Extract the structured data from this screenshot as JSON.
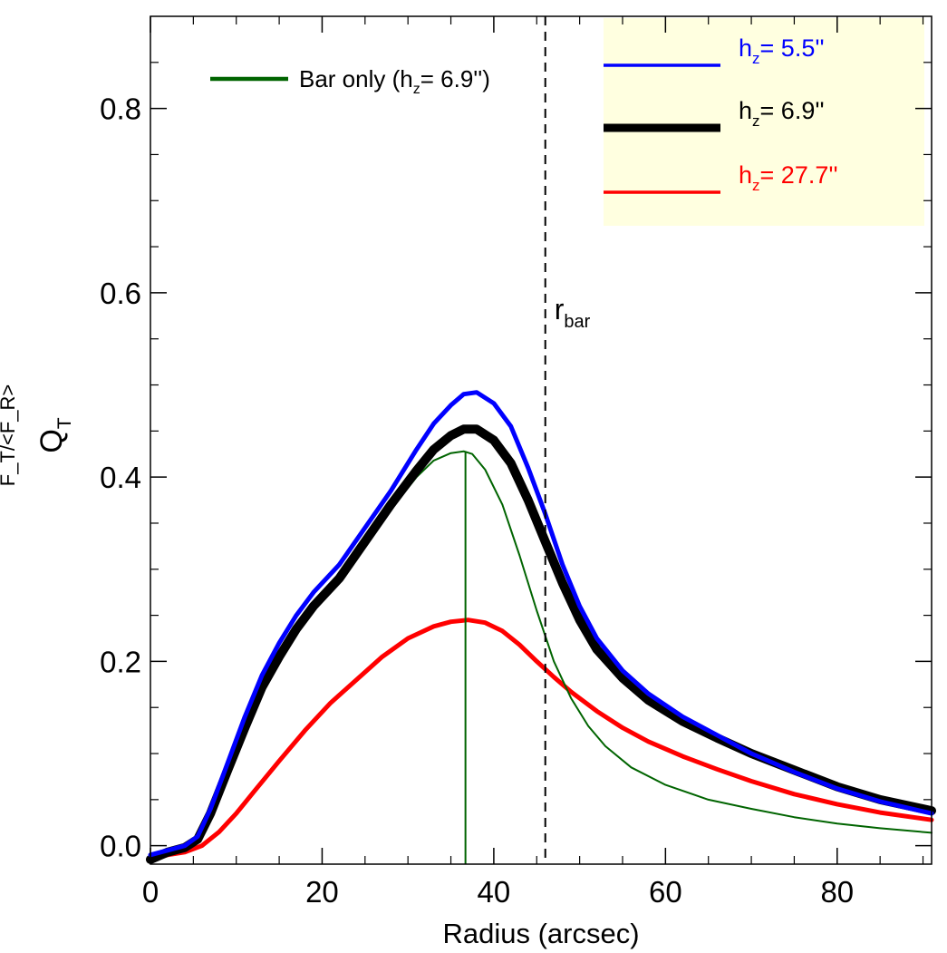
{
  "chart_data": {
    "type": "line",
    "title": "",
    "xlabel": "Radius (arcsec)",
    "ylabel_main": "Q",
    "ylabel_main_sub": "T",
    "ylabel_secondary": "F_T/<F_R>",
    "xlim": [
      0,
      91
    ],
    "ylim": [
      -0.02,
      0.9
    ],
    "x_ticks": [
      0,
      20,
      40,
      60,
      80
    ],
    "x_tick_labels": [
      "0",
      "20",
      "40",
      "60",
      "80"
    ],
    "y_ticks": [
      0.0,
      0.2,
      0.4,
      0.6,
      0.8
    ],
    "y_tick_labels": [
      "0.0",
      "0.2",
      "0.4",
      "0.6",
      "0.8"
    ],
    "grid": false,
    "series": [
      {
        "name": "h_z= 5.5''",
        "color": "#0000ff",
        "style": "solid",
        "x": [
          0,
          2,
          4,
          5.5,
          7,
          9,
          11,
          13,
          15,
          17,
          19,
          22,
          25,
          28,
          31,
          33,
          35,
          36.5,
          38,
          40,
          42,
          44,
          46,
          48,
          50,
          52,
          55,
          58,
          62,
          66,
          70,
          75,
          80,
          85,
          91
        ],
        "values": [
          -0.01,
          -0.005,
          0.0,
          0.01,
          0.04,
          0.09,
          0.14,
          0.185,
          0.22,
          0.25,
          0.275,
          0.305,
          0.345,
          0.385,
          0.43,
          0.458,
          0.478,
          0.49,
          0.492,
          0.48,
          0.455,
          0.41,
          0.36,
          0.305,
          0.26,
          0.225,
          0.19,
          0.165,
          0.14,
          0.12,
          0.1,
          0.08,
          0.062,
          0.048,
          0.035
        ]
      },
      {
        "name": "h_z= 6.9''",
        "color": "#000000",
        "style": "solid-thick",
        "x": [
          0,
          2,
          4,
          5.5,
          7,
          9,
          11,
          13,
          15,
          17,
          19,
          22,
          25,
          28,
          31,
          33,
          35,
          36.5,
          38,
          40,
          42,
          44,
          46,
          48,
          50,
          52,
          55,
          58,
          62,
          66,
          70,
          75,
          80,
          85,
          91
        ],
        "values": [
          -0.015,
          -0.007,
          -0.002,
          0.007,
          0.035,
          0.082,
          0.128,
          0.172,
          0.205,
          0.235,
          0.26,
          0.29,
          0.33,
          0.37,
          0.407,
          0.43,
          0.445,
          0.452,
          0.452,
          0.44,
          0.415,
          0.375,
          0.33,
          0.285,
          0.245,
          0.213,
          0.182,
          0.158,
          0.135,
          0.117,
          0.1,
          0.082,
          0.064,
          0.05,
          0.038
        ]
      },
      {
        "name": "h_z= 27.7''",
        "color": "#ff0000",
        "style": "solid",
        "x": [
          0,
          2,
          4,
          6,
          8,
          10,
          12,
          15,
          18,
          21,
          24,
          27,
          30,
          33,
          35,
          37,
          39,
          41,
          43,
          45,
          47,
          49,
          52,
          55,
          58,
          62,
          66,
          70,
          75,
          80,
          85,
          91
        ],
        "values": [
          -0.015,
          -0.01,
          -0.007,
          0.0,
          0.015,
          0.035,
          0.058,
          0.092,
          0.125,
          0.155,
          0.18,
          0.205,
          0.225,
          0.238,
          0.243,
          0.245,
          0.242,
          0.233,
          0.218,
          0.2,
          0.183,
          0.167,
          0.146,
          0.128,
          0.113,
          0.097,
          0.083,
          0.07,
          0.056,
          0.045,
          0.036,
          0.028
        ]
      },
      {
        "name": "Bar only (h_z= 6.9'')",
        "color": "#006400",
        "style": "solid-thin",
        "x": [
          0,
          2,
          4,
          5.5,
          7,
          9,
          11,
          13,
          15,
          17,
          19,
          22,
          25,
          28,
          31,
          33,
          35,
          36.5,
          37.5,
          39,
          41,
          43,
          45,
          47,
          49,
          51,
          53,
          56,
          60,
          65,
          70,
          75,
          80,
          85,
          91
        ],
        "values": [
          -0.015,
          -0.008,
          -0.003,
          0.005,
          0.033,
          0.08,
          0.125,
          0.17,
          0.205,
          0.235,
          0.26,
          0.29,
          0.33,
          0.365,
          0.4,
          0.418,
          0.426,
          0.428,
          0.425,
          0.408,
          0.37,
          0.315,
          0.255,
          0.2,
          0.16,
          0.13,
          0.108,
          0.085,
          0.066,
          0.05,
          0.04,
          0.031,
          0.024,
          0.019,
          0.014
        ]
      }
    ],
    "vertical_lines": [
      {
        "name": "bar-peak-line",
        "x": 36.7,
        "y_top": 0.428,
        "color": "#006400",
        "style": "solid"
      },
      {
        "name": "r-bar-line",
        "x": 46,
        "color": "#000000",
        "style": "dashed",
        "label": "r",
        "label_sub": "bar"
      }
    ],
    "legend_inside": {
      "text": "Bar only (h",
      "sub": "z",
      "text_after": "=   6.9'')",
      "color": "#006400"
    },
    "legend_box": {
      "background": "#ffffe0",
      "placement": "top-right",
      "entries": [
        {
          "prefix": "h",
          "sub": "z",
          "text": "=   5.5''",
          "color": "#0000ff"
        },
        {
          "prefix": "h",
          "sub": "z",
          "text": "=   6.9''",
          "color": "#000000"
        },
        {
          "prefix": "h",
          "sub": "z",
          "text": "=  27.7''",
          "color": "#ff0000"
        }
      ]
    }
  }
}
